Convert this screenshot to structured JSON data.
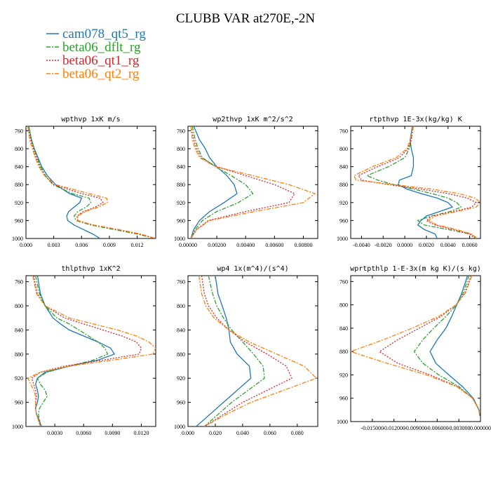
{
  "figure": {
    "title": "CLUBB VAR at270E,-2N"
  },
  "legend": [
    {
      "name": "cam078_qt5_rg",
      "color": "#1f77b4",
      "dash": "solid"
    },
    {
      "name": "beta06_dflt_rg",
      "color": "#2ca02c",
      "dash": "dashdot"
    },
    {
      "name": "beta06_qt1_rg",
      "color": "#d62728",
      "dash": "dot"
    },
    {
      "name": "beta06_qt2_rg",
      "color": "#ff7f0e",
      "dash": "dashdot"
    }
  ],
  "chart_data": [
    {
      "type": "line",
      "title": "wpthvp  1xK m/s",
      "xlim": [
        0.0,
        0.014
      ],
      "ylim": [
        1000,
        750
      ],
      "xticks": [
        "0.000",
        "0.003",
        "0.006",
        "0.009",
        "0.012"
      ],
      "xtick_values": [
        0.0,
        0.003,
        0.006,
        0.009,
        0.012
      ],
      "yticks": [
        760,
        800,
        840,
        880,
        920,
        960,
        1000
      ],
      "y": [
        750,
        780,
        800,
        820,
        840,
        860,
        880,
        900,
        910,
        920,
        930,
        940,
        950,
        960,
        970,
        980,
        990,
        1000
      ],
      "series": [
        {
          "name": "cam078_qt5_rg",
          "values": [
            0.0003,
            0.0006,
            0.0009,
            0.0013,
            0.0017,
            0.0023,
            0.0032,
            0.0047,
            0.006,
            0.0058,
            0.0052,
            0.0046,
            0.0044,
            0.0045,
            0.0052,
            0.0062,
            0.0072,
            0.008
          ]
        },
        {
          "name": "beta06_dflt_rg",
          "values": [
            0.0003,
            0.0006,
            0.0009,
            0.0012,
            0.0016,
            0.0021,
            0.0029,
            0.005,
            0.0068,
            0.007,
            0.0065,
            0.0056,
            0.0052,
            0.0054,
            0.007,
            0.0095,
            0.012,
            0.014
          ]
        },
        {
          "name": "beta06_qt1_rg",
          "values": [
            0.0002,
            0.0005,
            0.0008,
            0.0011,
            0.0015,
            0.002,
            0.003,
            0.006,
            0.008,
            0.0083,
            0.0075,
            0.0062,
            0.0055,
            0.0056,
            0.0072,
            0.0098,
            0.0122,
            0.014
          ]
        },
        {
          "name": "beta06_qt2_rg",
          "values": [
            0.0002,
            0.0004,
            0.0007,
            0.001,
            0.0014,
            0.002,
            0.0032,
            0.0068,
            0.0087,
            0.0088,
            0.0078,
            0.0064,
            0.0056,
            0.0056,
            0.0073,
            0.01,
            0.0124,
            0.014
          ]
        }
      ]
    },
    {
      "type": "line",
      "title": "wp2thvp  1xK m^2/s^2",
      "xlim": [
        0.0,
        0.009
      ],
      "ylim": [
        1000,
        750
      ],
      "xticks": [
        "0.00000",
        "0.00200",
        "0.00400",
        "0.00600",
        "0.00800"
      ],
      "xtick_values": [
        0.0,
        0.002,
        0.004,
        0.006,
        0.008
      ],
      "yticks": [
        760,
        800,
        840,
        880,
        920,
        960,
        1000
      ],
      "y": [
        750,
        780,
        800,
        820,
        840,
        860,
        880,
        900,
        920,
        940,
        960,
        980,
        1000
      ],
      "series": [
        {
          "name": "cam078_qt5_rg",
          "values": [
            0.0004,
            0.0008,
            0.0012,
            0.0015,
            0.002,
            0.0027,
            0.0032,
            0.0034,
            0.0025,
            0.0015,
            0.0008,
            0.0004,
            0.0002
          ]
        },
        {
          "name": "beta06_dflt_rg",
          "values": [
            0.0003,
            0.0005,
            0.0007,
            0.001,
            0.0019,
            0.003,
            0.004,
            0.0045,
            0.0035,
            0.002,
            0.001,
            0.0005,
            0.0002
          ]
        },
        {
          "name": "beta06_qt1_rg",
          "values": [
            0.0002,
            0.0004,
            0.0006,
            0.0009,
            0.002,
            0.004,
            0.006,
            0.0074,
            0.007,
            0.004,
            0.0014,
            0.0006,
            0.0002
          ]
        },
        {
          "name": "beta06_qt2_rg",
          "values": [
            0.0002,
            0.0003,
            0.0005,
            0.0008,
            0.0019,
            0.0045,
            0.007,
            0.0088,
            0.008,
            0.0046,
            0.0015,
            0.0006,
            0.0002
          ]
        }
      ]
    },
    {
      "type": "line",
      "title": "rtpthvp  1E-3x(kg/kg) K",
      "xlim": [
        -0.005,
        0.007
      ],
      "ylim": [
        1000,
        750
      ],
      "xticks": [
        "-0.0040",
        "-0.0020",
        "0.0000",
        "0.0020",
        "0.0040",
        "0.0060"
      ],
      "xtick_values": [
        -0.004,
        -0.002,
        0.0,
        0.002,
        0.004,
        0.006
      ],
      "yticks": [
        760,
        800,
        840,
        880,
        920,
        960,
        1000
      ],
      "y": [
        750,
        780,
        800,
        820,
        840,
        860,
        870,
        880,
        890,
        900,
        910,
        920,
        930,
        940,
        950,
        960,
        970,
        980,
        990,
        1000
      ],
      "series": [
        {
          "name": "cam078_qt5_rg",
          "values": [
            0.0007,
            0.0005,
            0.0006,
            0.0008,
            0.0008,
            0.0006,
            -0.0005,
            -0.0006,
            0.0002,
            0.0015,
            0.003,
            0.004,
            0.0044,
            0.0032,
            0.002,
            0.0015,
            0.0012,
            0.0018,
            0.0028,
            0.003
          ]
        },
        {
          "name": "beta06_dflt_rg",
          "values": [
            0.0007,
            0.0006,
            0.0004,
            0.0,
            -0.0015,
            -0.0035,
            -0.0025,
            -0.001,
            0.0008,
            0.0025,
            0.004,
            0.0048,
            0.0052,
            0.0042,
            0.0025,
            0.0012,
            0.0018,
            0.004,
            0.006,
            0.0068
          ]
        },
        {
          "name": "beta06_qt1_rg",
          "values": [
            0.0008,
            0.0006,
            0.0003,
            -0.0005,
            -0.0025,
            -0.0043,
            -0.004,
            -0.0015,
            0.0015,
            0.004,
            0.0058,
            0.0066,
            0.0062,
            0.0045,
            0.0025,
            0.002,
            0.0028,
            0.0045,
            0.006,
            0.0065
          ]
        },
        {
          "name": "beta06_qt2_rg",
          "values": [
            0.0008,
            0.0005,
            0.0002,
            -0.0008,
            -0.003,
            -0.0047,
            -0.0045,
            -0.001,
            0.0025,
            0.005,
            0.0065,
            0.007,
            0.0066,
            0.0048,
            0.0028,
            0.0022,
            0.003,
            0.0048,
            0.0062,
            0.0066
          ]
        }
      ]
    },
    {
      "type": "line",
      "title": "thlpthvp  1xK^2",
      "xlim": [
        0.0,
        0.0135
      ],
      "ylim": [
        1000,
        750
      ],
      "xticks": [
        "0.0030",
        "0.0060",
        "0.0090",
        "0.0120"
      ],
      "xtick_values": [
        0.003,
        0.006,
        0.009,
        0.012
      ],
      "yticks": [
        760,
        800,
        840,
        880,
        920,
        960,
        1000
      ],
      "y": [
        750,
        780,
        800,
        820,
        830,
        840,
        850,
        860,
        870,
        880,
        890,
        900,
        910,
        920,
        930,
        940,
        950,
        960,
        970,
        980,
        990,
        1000
      ],
      "series": [
        {
          "name": "cam078_qt5_rg",
          "values": [
            0.0012,
            0.0015,
            0.002,
            0.0028,
            0.0036,
            0.0045,
            0.006,
            0.0075,
            0.0088,
            0.0092,
            0.0075,
            0.0045,
            0.002,
            0.0012,
            0.001,
            0.0012,
            0.0013,
            0.0012,
            0.001,
            0.0011,
            0.0014,
            0.0016
          ]
        },
        {
          "name": "beta06_dflt_rg",
          "values": [
            0.001,
            0.0014,
            0.002,
            0.0032,
            0.0045,
            0.0055,
            0.0065,
            0.0075,
            0.0082,
            0.0085,
            0.007,
            0.0045,
            0.0022,
            0.0012,
            0.0015,
            0.002,
            0.0022,
            0.0018,
            0.0014,
            0.0013,
            0.0014,
            0.0015
          ]
        },
        {
          "name": "beta06_qt1_rg",
          "values": [
            0.0008,
            0.0012,
            0.002,
            0.004,
            0.006,
            0.008,
            0.01,
            0.0115,
            0.012,
            0.0118,
            0.008,
            0.004,
            0.0015,
            0.0006,
            0.0008,
            0.001,
            0.0011,
            0.001,
            0.001,
            0.0011,
            0.0013,
            0.0015
          ]
        },
        {
          "name": "beta06_qt2_rg",
          "values": [
            0.0007,
            0.0011,
            0.002,
            0.0045,
            0.007,
            0.0095,
            0.0115,
            0.0128,
            0.0135,
            0.0132,
            0.009,
            0.0045,
            0.0015,
            0.0002,
            0.0005,
            0.0008,
            0.001,
            0.001,
            0.001,
            0.0011,
            0.0013,
            0.0015
          ]
        }
      ]
    },
    {
      "type": "line",
      "title": "wp4  1x(m^4)/(s^4)",
      "xlim": [
        0.0,
        0.095
      ],
      "ylim": [
        1000,
        750
      ],
      "xticks": [
        "0.000",
        "0.020",
        "0.040",
        "0.060",
        "0.080"
      ],
      "xtick_values": [
        0.0,
        0.02,
        0.04,
        0.06,
        0.08
      ],
      "yticks": [
        760,
        800,
        840,
        880,
        920,
        960,
        1000
      ],
      "y": [
        750,
        780,
        800,
        820,
        840,
        860,
        880,
        900,
        920,
        940,
        960,
        980,
        1000
      ],
      "series": [
        {
          "name": "cam078_qt5_rg",
          "values": [
            0.02,
            0.022,
            0.025,
            0.028,
            0.03,
            0.031,
            0.036,
            0.045,
            0.046,
            0.036,
            0.026,
            0.016,
            0.006
          ]
        },
        {
          "name": "beta06_dflt_rg",
          "values": [
            0.015,
            0.018,
            0.021,
            0.026,
            0.032,
            0.04,
            0.048,
            0.055,
            0.056,
            0.044,
            0.032,
            0.022,
            0.012
          ]
        },
        {
          "name": "beta06_qt1_rg",
          "values": [
            0.01,
            0.012,
            0.015,
            0.021,
            0.03,
            0.042,
            0.058,
            0.072,
            0.076,
            0.058,
            0.04,
            0.026,
            0.012
          ]
        },
        {
          "name": "beta06_qt2_rg",
          "values": [
            0.008,
            0.01,
            0.013,
            0.019,
            0.03,
            0.045,
            0.065,
            0.085,
            0.094,
            0.07,
            0.046,
            0.028,
            0.012
          ]
        }
      ]
    },
    {
      "type": "line",
      "title": "wprtpthlp  1-E-3x(m kg K)/(s kg)",
      "xlim": [
        -0.018,
        0.0
      ],
      "ylim": [
        1000,
        750
      ],
      "xticks": [
        "-0.015000",
        "-0.012000",
        "-0.009000",
        "-0.006000",
        "-0.003000",
        "0.000000"
      ],
      "xtick_values": [
        -0.015,
        -0.012,
        -0.009,
        -0.006,
        -0.003,
        0.0
      ],
      "yticks": [
        760,
        800,
        840,
        880,
        920,
        960,
        1000
      ],
      "y": [
        750,
        780,
        800,
        820,
        840,
        860,
        880,
        900,
        920,
        940,
        960,
        980,
        990
      ],
      "series": [
        {
          "name": "cam078_qt5_rg",
          "values": [
            -0.0018,
            -0.0026,
            -0.0033,
            -0.004,
            -0.0048,
            -0.006,
            -0.007,
            -0.0062,
            -0.0044,
            -0.0025,
            -0.001,
            -0.0002,
            -0.0001
          ]
        },
        {
          "name": "beta06_dflt_rg",
          "values": [
            -0.0016,
            -0.0024,
            -0.0033,
            -0.0048,
            -0.0065,
            -0.008,
            -0.0092,
            -0.008,
            -0.0058,
            -0.003,
            -0.0011,
            -0.0002,
            -0.0001
          ]
        },
        {
          "name": "beta06_qt1_rg",
          "values": [
            -0.0013,
            -0.0022,
            -0.0034,
            -0.0055,
            -0.0085,
            -0.0115,
            -0.014,
            -0.0115,
            -0.007,
            -0.0032,
            -0.0011,
            -0.0002,
            -0.0001
          ]
        },
        {
          "name": "beta06_qt2_rg",
          "values": [
            -0.0012,
            -0.0021,
            -0.0034,
            -0.0058,
            -0.0095,
            -0.0135,
            -0.018,
            -0.013,
            -0.0075,
            -0.0033,
            -0.0011,
            -0.0002,
            -0.0001
          ]
        }
      ]
    }
  ]
}
